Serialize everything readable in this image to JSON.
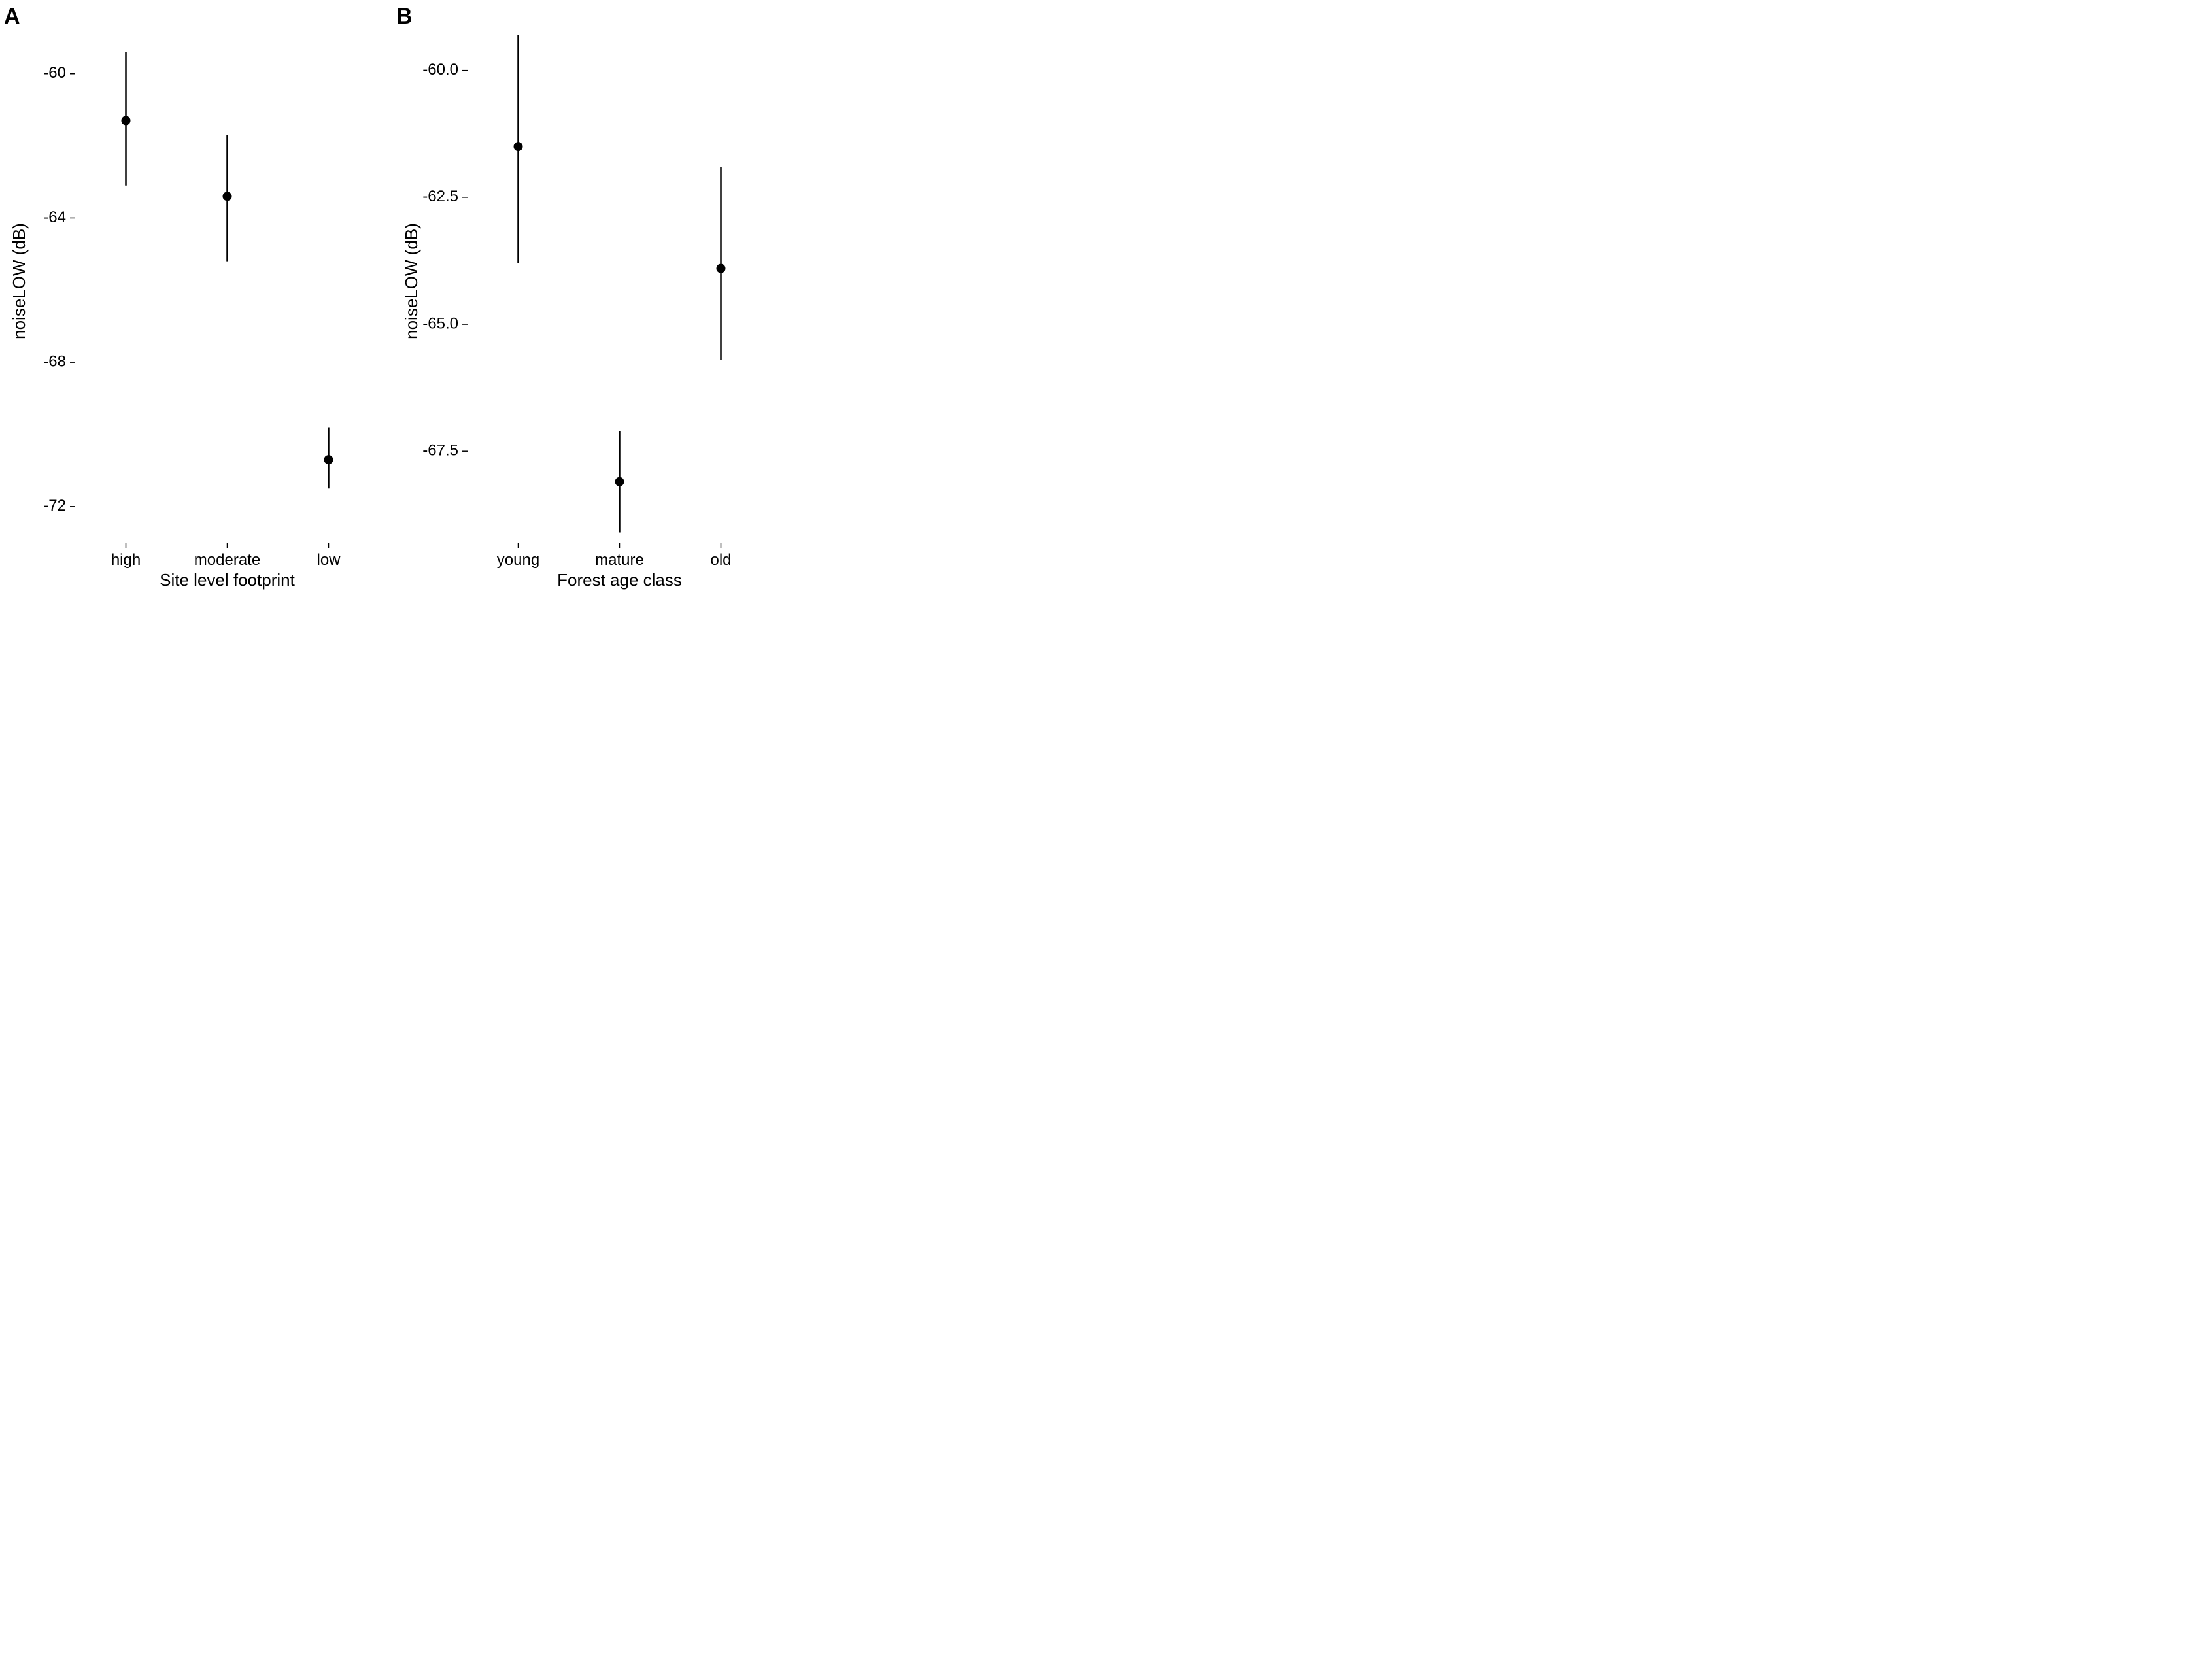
{
  "figure": {
    "type": "pointrange-multipanel",
    "background_color": "#ffffff",
    "point_color": "#000000",
    "error_color": "#000000",
    "tick_color": "#000000",
    "text_color": "#000000",
    "point_radius": 7,
    "error_linewidth": 2.5,
    "tick_linewidth": 1.5,
    "axis_tick_fontsize": 24,
    "axis_title_fontsize": 26,
    "panel_label_fontsize": 34,
    "panel_label_fontweight": 700
  },
  "panelA": {
    "label": "A",
    "xlabel": "Site level footprint",
    "ylabel": "noiseLOW (dB)",
    "ylim": [
      -73,
      -58.5
    ],
    "yticks": [
      -60,
      -64,
      -68,
      -72
    ],
    "ytick_labels": [
      "-60",
      "-64",
      "-68",
      "-72"
    ],
    "categories": [
      "high",
      "moderate",
      "low"
    ],
    "series": [
      {
        "mean": -61.3,
        "lower": -63.1,
        "upper": -59.4
      },
      {
        "mean": -63.4,
        "lower": -65.2,
        "upper": -61.7
      },
      {
        "mean": -70.7,
        "lower": -71.5,
        "upper": -69.8
      }
    ]
  },
  "panelB": {
    "label": "B",
    "xlabel": "Forest age class",
    "ylabel": "noiseLOW (dB)",
    "ylim": [
      -69.3,
      -59
    ],
    "yticks": [
      -60.0,
      -62.5,
      -65.0,
      -67.5
    ],
    "ytick_labels": [
      "-60.0",
      "-62.5",
      "-65.0",
      "-67.5"
    ],
    "categories": [
      "young",
      "mature",
      "old"
    ],
    "series": [
      {
        "mean": -61.5,
        "lower": -63.8,
        "upper": -59.3
      },
      {
        "mean": -68.1,
        "lower": -69.1,
        "upper": -67.1
      },
      {
        "mean": -63.9,
        "lower": -65.7,
        "upper": -61.9
      }
    ]
  }
}
